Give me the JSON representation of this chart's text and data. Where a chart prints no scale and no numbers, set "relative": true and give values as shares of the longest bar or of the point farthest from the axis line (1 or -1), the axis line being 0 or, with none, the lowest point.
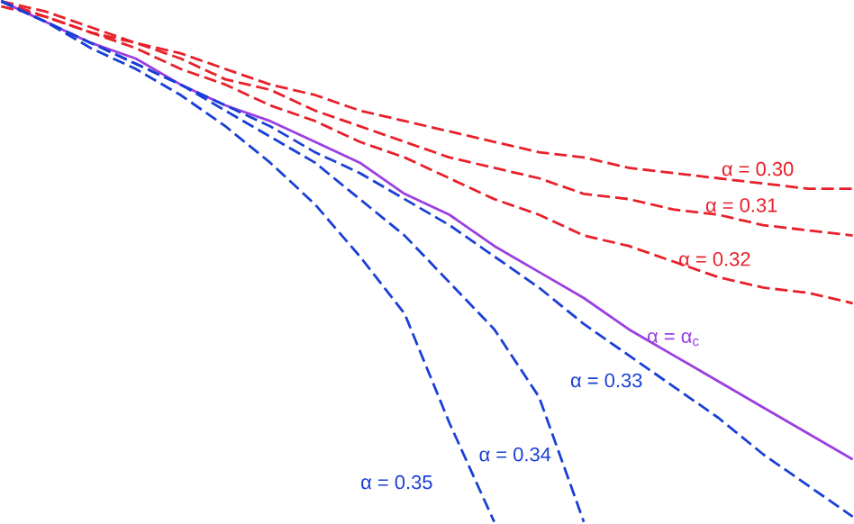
{
  "chart_data": {
    "type": "line",
    "relative": true,
    "categories": [
      null,
      null,
      null,
      null,
      null,
      null,
      null,
      null,
      null,
      null,
      null,
      null,
      null,
      null,
      null,
      null,
      null,
      null,
      null,
      null
    ],
    "series": [
      {
        "name": "α = 0.30",
        "color": "#e8202a",
        "line_style": "dashed",
        "values": [
          1.0,
          0.98,
          0.95,
          0.92,
          0.9,
          0.87,
          0.84,
          0.82,
          0.79,
          0.77,
          0.75,
          0.73,
          0.71,
          0.7,
          0.68,
          0.67,
          0.66,
          0.65,
          0.64,
          0.64
        ]
      },
      {
        "name": "α = 0.31",
        "color": "#e8202a",
        "line_style": "dashed",
        "values": [
          1.0,
          0.97,
          0.94,
          0.92,
          0.89,
          0.85,
          0.83,
          0.79,
          0.76,
          0.73,
          0.7,
          0.68,
          0.66,
          0.63,
          0.62,
          0.6,
          0.59,
          0.57,
          0.56,
          0.55
        ]
      },
      {
        "name": "α = 0.32",
        "color": "#e8202a",
        "line_style": "dashed",
        "values": [
          0.99,
          0.97,
          0.94,
          0.91,
          0.87,
          0.84,
          0.8,
          0.77,
          0.73,
          0.7,
          0.66,
          0.62,
          0.59,
          0.55,
          0.53,
          0.5,
          0.47,
          0.45,
          0.44,
          0.42
        ]
      },
      {
        "name": "α = α$_{c}$",
        "color": "#9b3fe0",
        "line_style": "solid",
        "values": [
          1.0,
          0.96,
          0.92,
          0.89,
          0.84,
          0.8,
          0.77,
          0.73,
          0.69,
          0.63,
          0.59,
          0.53,
          0.48,
          0.43,
          0.37,
          0.32,
          0.27,
          0.22,
          0.17,
          0.12
        ]
      },
      {
        "name": "α = 0.33",
        "color": "#1a3fd6",
        "line_style": "dashed",
        "values": [
          1.0,
          0.96,
          0.92,
          0.88,
          0.84,
          0.8,
          0.76,
          0.71,
          0.67,
          0.62,
          0.57,
          0.51,
          0.45,
          0.38,
          0.32,
          0.26,
          0.2,
          0.13,
          0.07,
          0.01
        ]
      },
      {
        "name": "α = 0.34",
        "color": "#1a3fd6",
        "line_style": "dashed",
        "values": [
          1.0,
          0.96,
          0.92,
          0.88,
          0.84,
          0.79,
          0.74,
          0.69,
          0.62,
          0.55,
          0.46,
          0.37,
          0.24,
          0.0,
          null,
          null,
          null,
          null,
          null,
          null
        ]
      },
      {
        "name": "α = 0.35",
        "color": "#1a3fd6",
        "line_style": "dashed",
        "values": [
          1.0,
          0.96,
          0.91,
          0.87,
          0.82,
          0.76,
          0.69,
          0.61,
          0.51,
          0.4,
          0.19,
          0.0,
          null,
          null,
          null,
          null,
          null,
          null,
          null,
          null
        ]
      }
    ]
  }
}
